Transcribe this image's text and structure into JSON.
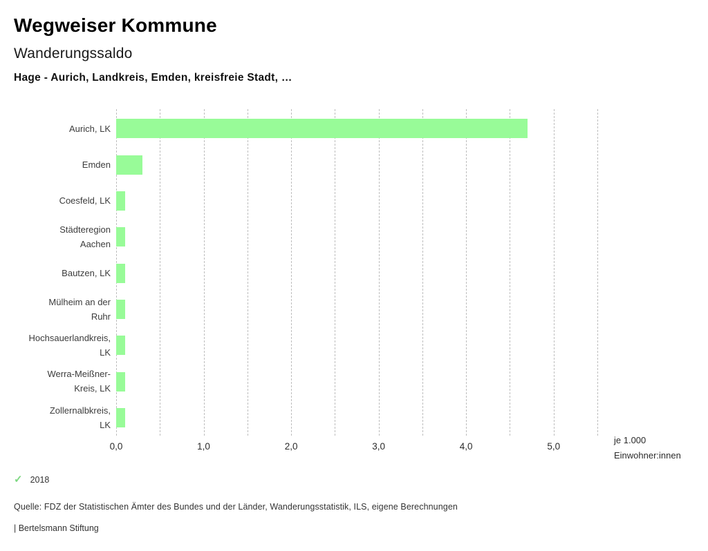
{
  "header": {
    "app_title": "Wegweiser Kommune"
  },
  "chart_data": {
    "type": "bar",
    "orientation": "horizontal",
    "title": "Wanderungssaldo",
    "subtitle": "Hage - Aurich, Landkreis, Emden, kreisfreie Stadt, …",
    "categories": [
      "Aurich, LK",
      "Emden",
      "Coesfeld, LK",
      "Städteregion Aachen",
      "Bautzen, LK",
      "Mülheim an der Ruhr",
      "Hochsauerlandkreis, LK",
      "Werra-Meißner-Kreis, LK",
      "Zollernalbkreis, LK"
    ],
    "category_lines": [
      [
        "Aurich, LK"
      ],
      [
        "Emden"
      ],
      [
        "Coesfeld, LK"
      ],
      [
        "Städteregion",
        "Aachen"
      ],
      [
        "Bautzen, LK"
      ],
      [
        "Mülheim an der",
        "Ruhr"
      ],
      [
        "Hochsauerlandkreis,",
        "LK"
      ],
      [
        "Werra-Meißner-",
        "Kreis, LK"
      ],
      [
        "Zollernalbkreis,",
        "LK"
      ]
    ],
    "series": [
      {
        "name": "2018",
        "values": [
          4.7,
          0.3,
          0.1,
          0.1,
          0.1,
          0.1,
          0.1,
          0.1,
          0.1
        ]
      }
    ],
    "xlabel": "je 1.000 Einwohner:innen",
    "xlabel_lines": [
      "je 1.000",
      "Einwohner:innen"
    ],
    "xlim": [
      0,
      5.5
    ],
    "xticks": [
      {
        "value": 0,
        "label": "0,0"
      },
      {
        "value": 1,
        "label": "1,0"
      },
      {
        "value": 2,
        "label": "2,0"
      },
      {
        "value": 3,
        "label": "3,0"
      },
      {
        "value": 4,
        "label": "4,0"
      },
      {
        "value": 5,
        "label": "5,0"
      }
    ],
    "gridline_step": 0.5,
    "grid": "vertical-dotted",
    "legend_position": "bottom-left"
  },
  "icons": {
    "legend_check": "✓"
  },
  "colors": {
    "bar": "#98fb98",
    "legend_check": "#7ed882",
    "grid": "#bdbdbd",
    "text": "#333333"
  },
  "footer": {
    "source": "Quelle: FDZ der Statistischen Ämter des Bundes und der Länder, Wanderungsstatistik, ILS, eigene Berechnungen",
    "branding": "| Bertelsmann Stiftung"
  }
}
